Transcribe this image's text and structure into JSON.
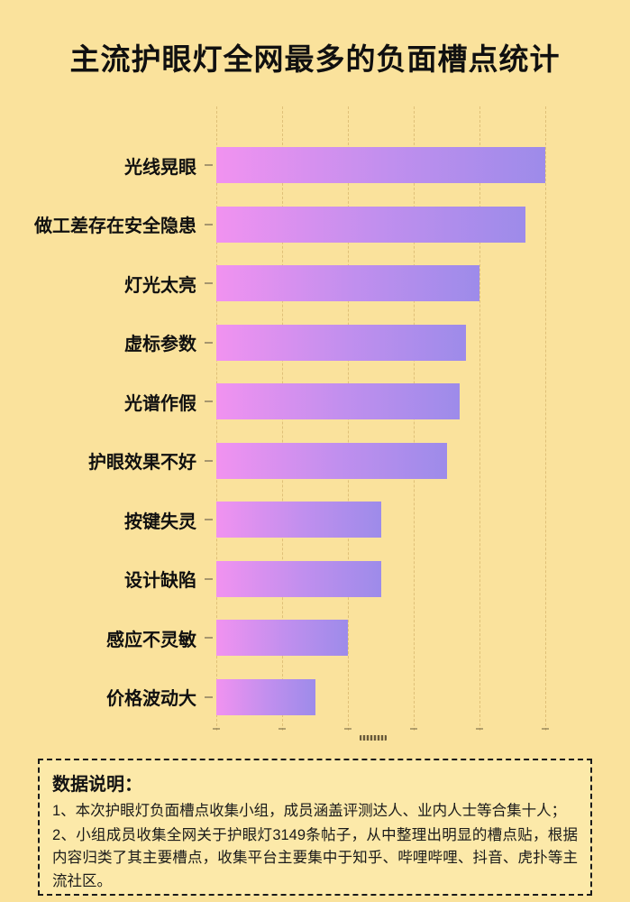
{
  "page": {
    "title": "主流护眼灯全网最多的负面槽点统计",
    "background_color": "#FAE29C"
  },
  "chart_data": {
    "type": "bar",
    "orientation": "horizontal",
    "title": "主流护眼灯全网最多的负面槽点统计",
    "categories": [
      "光线晃眼",
      "做工差存在安全隐患",
      "灯光太亮",
      "虚标参数",
      "光谱作假",
      "护眼效果不好",
      "按键失灵",
      "设计缺陷",
      "感应不灵敏",
      "价格波动大"
    ],
    "values": [
      5.0,
      4.7,
      4.0,
      3.8,
      3.7,
      3.5,
      2.5,
      2.5,
      2.0,
      1.5
    ],
    "values_pct_of_max": [
      100,
      94,
      80,
      76,
      74,
      70,
      50,
      50,
      40,
      30
    ],
    "value_axis_note": "axis tick labels not shown in image; values estimated in gridline units (1 unit per dashed gridline)",
    "xlabel": "",
    "ylabel": "",
    "xlim": [
      0,
      6.3
    ],
    "gridline_count": 6,
    "grid_style": "dashed-vertical",
    "legend": "none",
    "bar_gradient_left": "#F192F0",
    "bar_gradient_right": "#9D8BEA"
  },
  "footnote": {
    "heading": "数据说明：",
    "items": [
      "1、本次护眼灯负面槽点收集小组，成员涵盖评测达人、业内人士等合集十人；",
      "2、小组成员收集全网关于护眼灯3149条帖子，从中整理出明显的槽点贴，根据内容归类了其主要槽点，收集平台主要集中于知乎、哔哩哔哩、抖音、虎扑等主流社区。"
    ]
  }
}
